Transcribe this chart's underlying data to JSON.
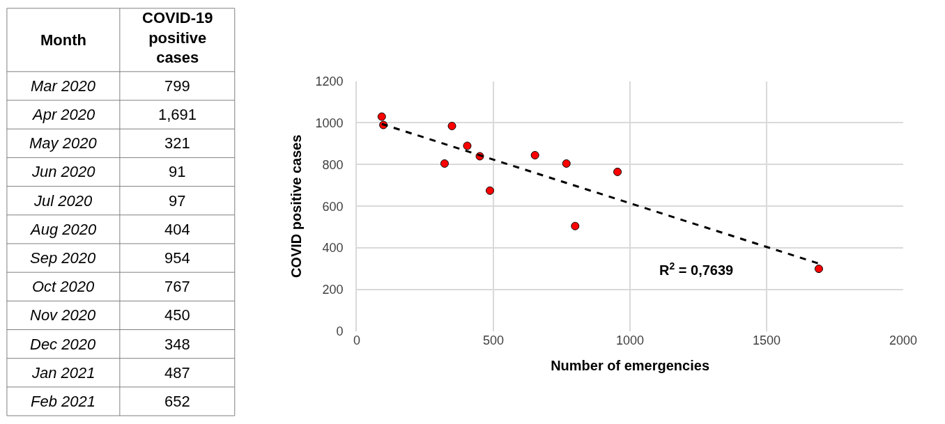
{
  "chart_data": [
    {
      "type": "other",
      "annotations": [
        "Month",
        "COVID-19 positive cases"
      ],
      "categories": [
        "Mar 2020",
        "Apr 2020",
        "May 2020",
        "Jun 2020",
        "Jul 2020",
        "Aug 2020",
        "Sep 2020",
        "Oct 2020",
        "Nov 2020",
        "Dec 2020",
        "Jan 2021",
        "Feb 2021"
      ],
      "value_labels": [
        "799",
        "1,691",
        "321",
        "91",
        "97",
        "404",
        "954",
        "767",
        "450",
        "348",
        "487",
        "652"
      ]
    },
    {
      "type": "scatter",
      "xlabel": "Number of emergencies",
      "ylabel": "COVID positive cases",
      "xlim": [
        0,
        2000
      ],
      "xticks": [
        0,
        500,
        1000,
        1500,
        2000
      ],
      "ylim": [
        0,
        1200
      ],
      "yticks": [
        0,
        200,
        400,
        600,
        800,
        1000,
        1200
      ],
      "grid": true,
      "marker": "circle",
      "annotations": [
        "R$^{2}$ = 0,7639"
      ],
      "series": [
        {
          "type": "scatter",
          "color": "#ff0000",
          "x": [
            799,
            1691,
            321,
            91,
            97,
            404,
            954,
            767,
            450,
            348,
            487,
            652
          ],
          "values": [
            505,
            300,
            805,
            1030,
            990,
            890,
            765,
            805,
            840,
            985,
            675,
            845
          ]
        },
        {
          "type": "line",
          "color": "#000000",
          "line_style": "dashed",
          "marker": "none",
          "x": [
            91,
            1691
          ],
          "values": [
            995,
            325
          ]
        }
      ]
    }
  ]
}
